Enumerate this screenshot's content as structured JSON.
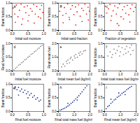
{
  "chart_data": [
    {
      "type": "scatter",
      "annotations": [
        "a"
      ],
      "x_label": "Initial soil moisture",
      "y_label": "Burnt fraction",
      "color": "#e8251f",
      "x": [
        0.03,
        0.08,
        0.13,
        0.18,
        0.23,
        0.28,
        0.33,
        0.38,
        0.43,
        0.48,
        0.53,
        0.58,
        0.63,
        0.68,
        0.73,
        0.78,
        0.83,
        0.88,
        0.93,
        0.97,
        0.1,
        0.3,
        0.5,
        0.7,
        0.9
      ],
      "values": [
        0.82,
        0.6,
        0.93,
        0.5,
        0.74,
        0.96,
        0.42,
        0.86,
        0.65,
        0.9,
        0.55,
        0.8,
        0.7,
        0.95,
        0.6,
        0.88,
        0.5,
        0.77,
        0.92,
        0.66,
        0.3,
        0.22,
        0.35,
        0.27,
        0.45
      ],
      "xlim": [
        0,
        1
      ],
      "ylim": [
        0,
        1
      ],
      "xticks": [
        0,
        0.5,
        1
      ],
      "yticks": [
        0,
        0.5,
        1
      ]
    },
    {
      "type": "scatter",
      "annotations": [
        "b"
      ],
      "x_label": "Initial sand fraction",
      "y_label": "Burnt fraction",
      "color": "#e8251f",
      "x": [
        0.04,
        0.09,
        0.14,
        0.19,
        0.24,
        0.29,
        0.34,
        0.39,
        0.44,
        0.49,
        0.54,
        0.59,
        0.64,
        0.69,
        0.74,
        0.79,
        0.84,
        0.89,
        0.94,
        0.98,
        0.15,
        0.35,
        0.55,
        0.75,
        0.95
      ],
      "values": [
        0.7,
        0.9,
        0.55,
        0.84,
        0.62,
        0.97,
        0.48,
        0.78,
        0.91,
        0.58,
        0.86,
        0.68,
        0.94,
        0.52,
        0.81,
        0.73,
        0.96,
        0.6,
        0.85,
        0.71,
        0.28,
        0.4,
        0.2,
        0.33,
        0.38
      ],
      "xlim": [
        0,
        1
      ],
      "ylim": [
        0,
        1
      ],
      "xticks": [
        0,
        0.5,
        1
      ],
      "yticks": [
        0,
        0.5,
        1
      ]
    },
    {
      "type": "scatter",
      "annotations": [
        "c"
      ],
      "x_label": "Fraction of vegetation",
      "y_label": "Burnt fraction",
      "color": "#e8251f",
      "x": [
        0.02,
        0.07,
        0.12,
        0.17,
        0.22,
        0.27,
        0.32,
        0.37,
        0.42,
        0.47,
        0.52,
        0.57,
        0.62,
        0.67,
        0.72,
        0.77,
        0.82,
        0.87,
        0.92,
        0.97,
        0.2,
        0.4,
        0.6,
        0.8,
        0.45
      ],
      "values": [
        0.88,
        0.64,
        0.79,
        0.95,
        0.53,
        0.72,
        0.9,
        0.6,
        0.83,
        0.97,
        0.5,
        0.76,
        0.87,
        0.63,
        0.92,
        0.57,
        0.8,
        0.94,
        0.69,
        0.85,
        0.36,
        0.25,
        0.42,
        0.31,
        0.18
      ],
      "xlim": [
        0,
        1
      ],
      "ylim": [
        0,
        1
      ],
      "xticks": [
        0,
        0.5,
        1
      ],
      "yticks": [
        0,
        0.5,
        1
      ]
    },
    {
      "type": "scatter",
      "annotations": [
        "d"
      ],
      "x_label": "Initial fuel moisture",
      "y_label": "Final fuel moisture",
      "color": "#8c8c8c",
      "x": [
        0.05,
        0.1,
        0.15,
        0.2,
        0.25,
        0.3,
        0.35,
        0.4,
        0.45,
        0.5,
        0.55,
        0.6,
        0.65,
        0.7,
        0.75,
        0.8,
        0.85,
        0.9,
        0.95
      ],
      "values": [
        0.04,
        0.1,
        0.14,
        0.21,
        0.24,
        0.3,
        0.34,
        0.41,
        0.44,
        0.5,
        0.54,
        0.61,
        0.64,
        0.7,
        0.74,
        0.8,
        0.84,
        0.9,
        0.94
      ],
      "xlim": [
        0,
        1
      ],
      "ylim": [
        0,
        1
      ],
      "xticks": [
        0,
        0.5,
        1
      ],
      "yticks": [
        0,
        0.5,
        1
      ]
    },
    {
      "type": "scatter",
      "annotations": [
        "e"
      ],
      "x_label": "Initial mean fuel (kg/m²)",
      "y_label": "Final mean fuel",
      "color": "#8c8c8c",
      "x": [
        0.2,
        0.3,
        0.4,
        0.5,
        0.55,
        0.6,
        0.7,
        0.75,
        0.8,
        0.9,
        1.0,
        1.05,
        1.1,
        1.2,
        1.3,
        1.35,
        1.4,
        1.5,
        1.6,
        1.7
      ],
      "values": [
        0.3,
        0.5,
        0.35,
        0.7,
        0.55,
        0.8,
        0.6,
        0.9,
        1.0,
        0.8,
        1.1,
        0.95,
        1.2,
        1.0,
        1.3,
        1.15,
        1.4,
        1.25,
        1.45,
        1.5
      ],
      "xlim": [
        0,
        2
      ],
      "ylim": [
        0,
        2
      ],
      "xticks": [
        0,
        1,
        2
      ],
      "yticks": [
        0,
        1,
        2
      ]
    },
    {
      "type": "scatter",
      "annotations": [
        "f"
      ],
      "x_label": "Initial total mass fuel (kg/m²)",
      "y_label": "Burnt fraction",
      "color": "#8c8c8c",
      "x": [
        0.2,
        0.35,
        0.5,
        0.6,
        0.7,
        0.8,
        0.9,
        1.0,
        1.1,
        1.2,
        1.3,
        1.4,
        1.5,
        1.6,
        1.7,
        1.8,
        0.45,
        0.95,
        1.35,
        1.65
      ],
      "values": [
        0.55,
        0.7,
        0.6,
        0.8,
        0.65,
        0.75,
        0.9,
        0.7,
        0.85,
        0.6,
        0.8,
        0.9,
        0.7,
        0.85,
        0.95,
        0.75,
        0.5,
        0.55,
        0.65,
        0.6
      ],
      "xlim": [
        0,
        2
      ],
      "ylim": [
        0,
        1
      ],
      "xticks": [
        0,
        1,
        2
      ],
      "yticks": [
        0,
        0.5,
        1
      ]
    },
    {
      "type": "scatter",
      "annotations": [
        "g"
      ],
      "x_label": "Final fuel moisture",
      "y_label": "Burnt fraction",
      "color": "#2c3fa8",
      "x": [
        0.05,
        0.1,
        0.15,
        0.2,
        0.25,
        0.3,
        0.35,
        0.4,
        0.45,
        0.5,
        0.55,
        0.6,
        0.65,
        0.7,
        0.75,
        0.8,
        0.85,
        0.9,
        0.2,
        0.5
      ],
      "values": [
        0.85,
        0.9,
        0.8,
        0.88,
        0.75,
        0.82,
        0.7,
        0.78,
        0.65,
        0.72,
        0.6,
        0.66,
        0.52,
        0.58,
        0.45,
        0.5,
        0.38,
        0.42,
        0.6,
        0.5
      ],
      "xlim": [
        0,
        1
      ],
      "ylim": [
        0,
        1
      ],
      "xticks": [
        0,
        0.5,
        1
      ],
      "yticks": [
        0,
        0.5,
        1
      ]
    },
    {
      "type": "scatter",
      "annotations": [
        "h"
      ],
      "x_label": "Final total mass fuel (kg/m²)",
      "y_label": "Burnt fraction",
      "color": "#2c3fa8",
      "x": [
        0.1,
        0.2,
        0.3,
        0.4,
        0.5,
        0.6,
        0.7,
        0.8,
        0.9,
        1.0,
        1.1,
        1.2,
        1.3,
        1.4,
        1.5,
        1.6,
        1.7,
        1.8,
        0.6,
        1.2
      ],
      "values": [
        0.05,
        0.07,
        0.1,
        0.12,
        0.16,
        0.2,
        0.24,
        0.29,
        0.34,
        0.4,
        0.46,
        0.52,
        0.58,
        0.65,
        0.72,
        0.8,
        0.87,
        0.94,
        0.3,
        0.42
      ],
      "xlim": [
        0,
        2
      ],
      "ylim": [
        0,
        1
      ],
      "xticks": [
        0,
        1,
        2
      ],
      "yticks": [
        0,
        0.5,
        1
      ]
    },
    {
      "type": "scatter",
      "annotations": [
        "i"
      ],
      "x_label": "Final mean fuel (kg/m²)",
      "y_label": "Burnt fraction",
      "color": "#2c3fa8",
      "x": [
        0.1,
        0.2,
        0.3,
        0.4,
        0.5,
        0.6,
        0.7,
        0.8,
        0.9,
        1.0,
        1.1,
        1.2,
        1.3,
        1.4,
        1.5,
        1.6,
        1.7,
        0.4,
        0.9,
        1.3
      ],
      "values": [
        0.1,
        0.18,
        0.22,
        0.3,
        0.35,
        0.42,
        0.45,
        0.52,
        0.56,
        0.6,
        0.66,
        0.7,
        0.74,
        0.8,
        0.84,
        0.88,
        0.92,
        0.45,
        0.68,
        0.62
      ],
      "xlim": [
        0,
        2
      ],
      "ylim": [
        0,
        1
      ],
      "xticks": [
        0,
        1,
        2
      ],
      "yticks": [
        0,
        0.5,
        1
      ]
    }
  ]
}
